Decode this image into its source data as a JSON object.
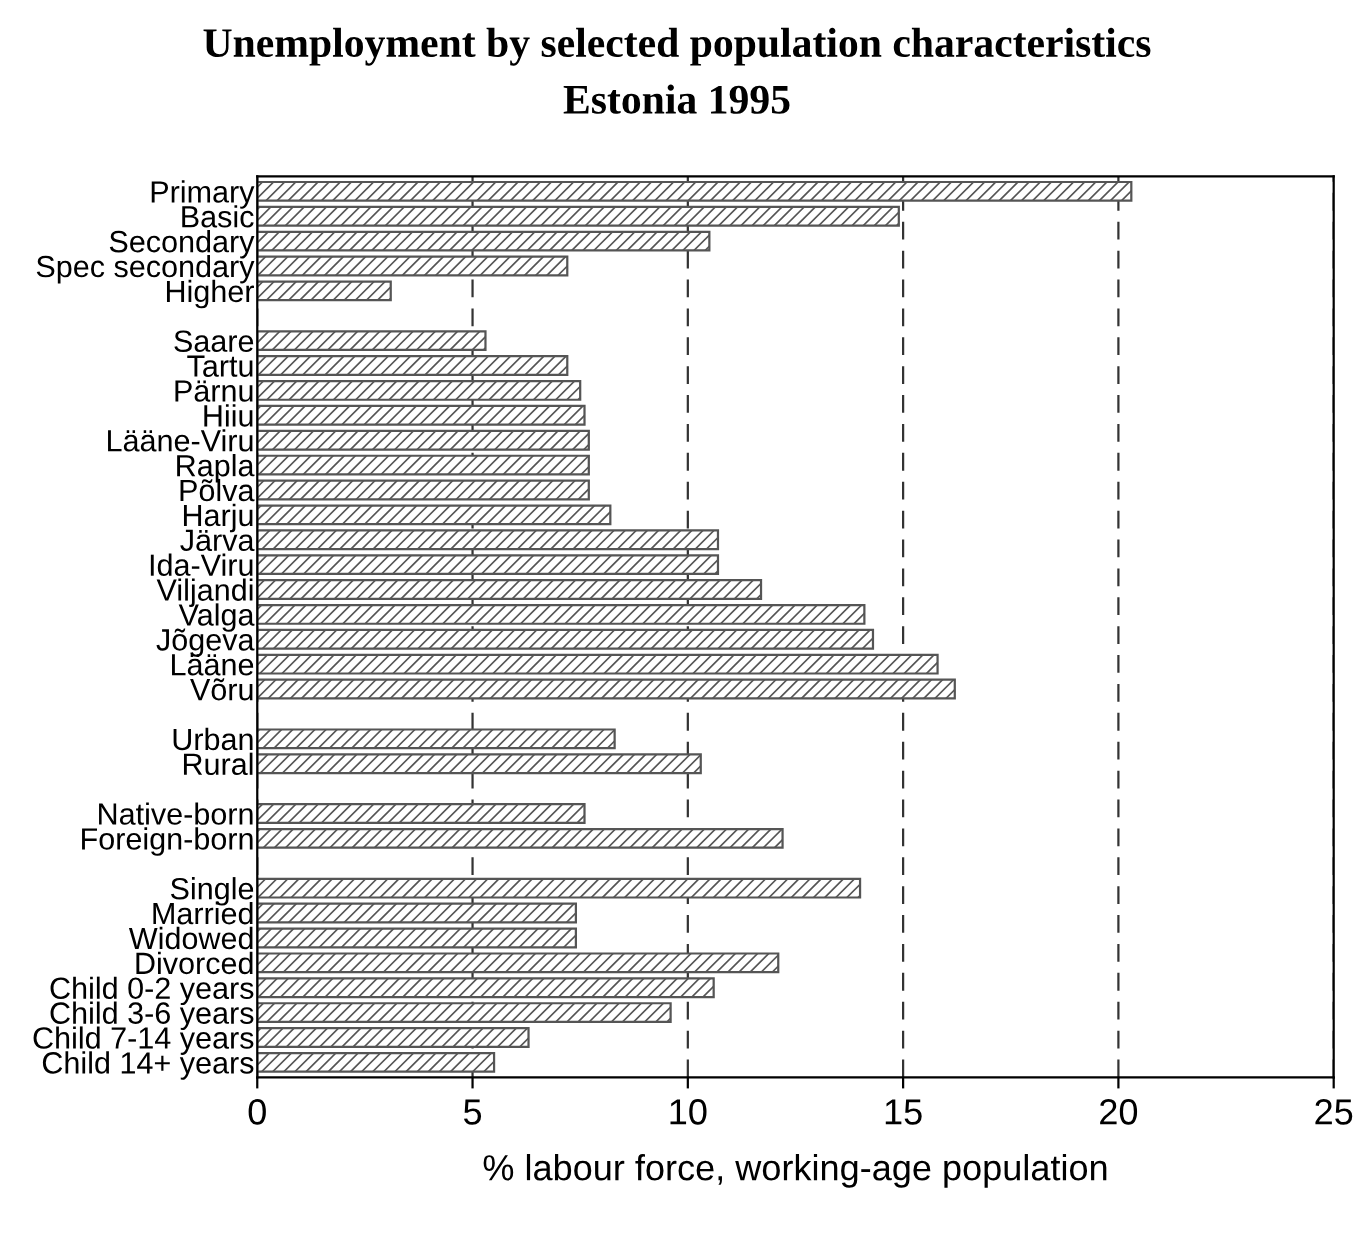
{
  "chart_data": {
    "type": "bar",
    "orientation": "horizontal",
    "title": "Unemployment by selected population characteristics",
    "subtitle": "Estonia 1995",
    "xlabel": "% labour force, working-age population",
    "categories": [
      "Primary",
      "Basic",
      "Secondary",
      "Spec secondary",
      "Higher",
      null,
      "Saare",
      "Tartu",
      "Pärnu",
      "Hiiu",
      "Lääne-Viru",
      "Rapla",
      "Põlva",
      "Harju",
      "Järva",
      "Ida-Viru",
      "Viljandi",
      "Valga",
      "Jõgeva",
      "Lääne",
      "Võru",
      null,
      "Urban",
      "Rural",
      null,
      "Native-born",
      "Foreign-born",
      null,
      "Single",
      "Married",
      "Widowed",
      "Divorced",
      "Child 0-2 years",
      "Child 3-6 years",
      "Child 7-14 years",
      "Child 14+ years"
    ],
    "values": [
      20.3,
      14.9,
      10.5,
      7.2,
      3.1,
      null,
      5.3,
      7.2,
      7.5,
      7.6,
      7.7,
      7.7,
      7.7,
      8.2,
      10.7,
      10.7,
      11.7,
      14.1,
      14.3,
      15.8,
      16.2,
      null,
      8.3,
      10.3,
      null,
      7.6,
      12.2,
      null,
      14.0,
      7.4,
      7.4,
      12.1,
      10.6,
      9.6,
      6.3,
      5.5
    ],
    "color": "#555555",
    "xlim": [
      0,
      25
    ],
    "xticks": [
      0,
      5,
      10,
      15,
      20,
      25
    ],
    "grid": "x"
  }
}
